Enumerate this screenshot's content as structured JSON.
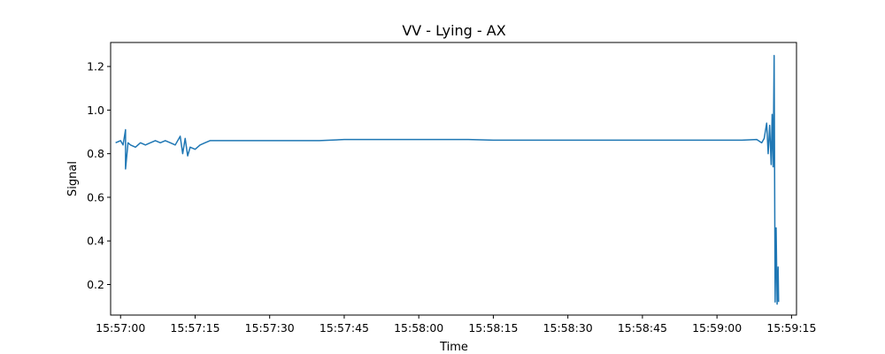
{
  "chart_data": {
    "type": "line",
    "title": "VV - Lying - AX",
    "xlabel": "Time",
    "ylabel": "Signal",
    "x_is_time": true,
    "xlim": [
      "15:56:58",
      "15:59:16"
    ],
    "ylim": [
      0.06,
      1.31
    ],
    "xticks": [
      "15:57:00",
      "15:57:15",
      "15:57:30",
      "15:57:45",
      "15:58:00",
      "15:58:15",
      "15:58:30",
      "15:58:45",
      "15:59:00",
      "15:59:15"
    ],
    "yticks": [
      0.2,
      0.4,
      0.6,
      0.8,
      1.0,
      1.2
    ],
    "ytick_labels": [
      "0.2",
      "0.4",
      "0.6",
      "0.8",
      "1.0",
      "1.2"
    ],
    "grid": false,
    "series": [
      {
        "name": "",
        "color": "#1f77b4",
        "points": [
          [
            "15:56:59",
            0.85
          ],
          [
            "15:57:00",
            0.86
          ],
          [
            "15:57:00.5",
            0.84
          ],
          [
            "15:57:01",
            0.91
          ],
          [
            "15:57:01",
            0.73
          ],
          [
            "15:57:01.5",
            0.85
          ],
          [
            "15:57:02",
            0.84
          ],
          [
            "15:57:03",
            0.83
          ],
          [
            "15:57:04",
            0.85
          ],
          [
            "15:57:05",
            0.84
          ],
          [
            "15:57:06",
            0.85
          ],
          [
            "15:57:07",
            0.86
          ],
          [
            "15:57:08",
            0.85
          ],
          [
            "15:57:09",
            0.86
          ],
          [
            "15:57:10",
            0.85
          ],
          [
            "15:57:11",
            0.84
          ],
          [
            "15:57:12",
            0.88
          ],
          [
            "15:57:12.5",
            0.8
          ],
          [
            "15:57:13",
            0.87
          ],
          [
            "15:57:13.5",
            0.79
          ],
          [
            "15:57:14",
            0.83
          ],
          [
            "15:57:15",
            0.82
          ],
          [
            "15:57:16",
            0.84
          ],
          [
            "15:57:17",
            0.85
          ],
          [
            "15:57:18",
            0.86
          ],
          [
            "15:57:20",
            0.86
          ],
          [
            "15:57:25",
            0.86
          ],
          [
            "15:57:30",
            0.86
          ],
          [
            "15:57:35",
            0.86
          ],
          [
            "15:57:40",
            0.86
          ],
          [
            "15:57:45",
            0.865
          ],
          [
            "15:57:50",
            0.865
          ],
          [
            "15:57:55",
            0.865
          ],
          [
            "15:58:00",
            0.865
          ],
          [
            "15:58:05",
            0.865
          ],
          [
            "15:58:10",
            0.865
          ],
          [
            "15:58:15",
            0.862
          ],
          [
            "15:58:20",
            0.862
          ],
          [
            "15:58:25",
            0.862
          ],
          [
            "15:58:30",
            0.862
          ],
          [
            "15:58:35",
            0.862
          ],
          [
            "15:58:40",
            0.862
          ],
          [
            "15:58:45",
            0.862
          ],
          [
            "15:58:50",
            0.862
          ],
          [
            "15:58:55",
            0.862
          ],
          [
            "15:59:00",
            0.862
          ],
          [
            "15:59:05",
            0.862
          ],
          [
            "15:59:08",
            0.865
          ],
          [
            "15:59:09",
            0.85
          ],
          [
            "15:59:09.5",
            0.87
          ],
          [
            "15:59:10",
            0.94
          ],
          [
            "15:59:10.3",
            0.8
          ],
          [
            "15:59:10.6",
            0.93
          ],
          [
            "15:59:10.9",
            0.75
          ],
          [
            "15:59:11.1",
            0.98
          ],
          [
            "15:59:11.3",
            0.74
          ],
          [
            "15:59:11.5",
            1.25
          ],
          [
            "15:59:11.7",
            0.12
          ],
          [
            "15:59:11.9",
            0.46
          ],
          [
            "15:59:12.1",
            0.11
          ],
          [
            "15:59:12.3",
            0.28
          ],
          [
            "15:59:12.4",
            0.12
          ]
        ]
      }
    ]
  }
}
